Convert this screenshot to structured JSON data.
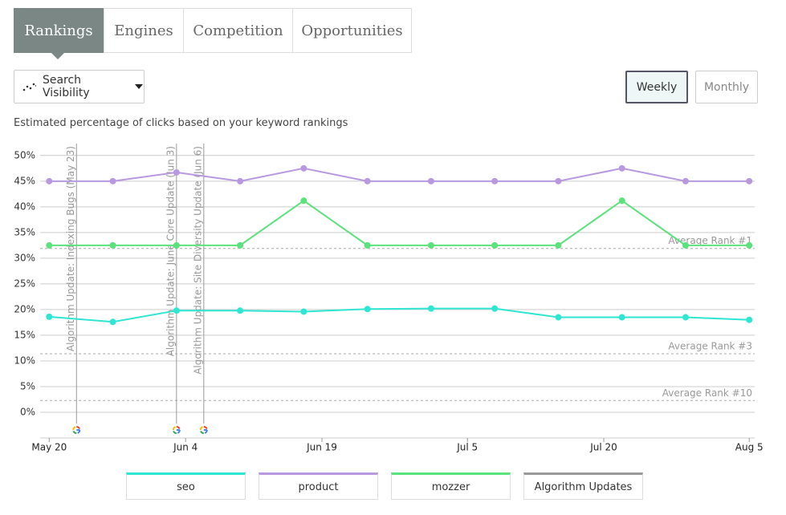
{
  "tabs": [
    "Rankings",
    "Engines",
    "Competition",
    "Opportunities"
  ],
  "dropdown": "Search Visibility",
  "period_buttons": [
    "Weekly",
    "Monthly"
  ],
  "subtitle": "Estimated percentage of clicks based on your keyword rankings",
  "chart_data": {
    "type": "line",
    "x": [
      0,
      7,
      14,
      21,
      28,
      35,
      42,
      49,
      56,
      63,
      70,
      77
    ],
    "xlim": [
      -1,
      77.6
    ],
    "xticks": [
      {
        "value": 0,
        "label": "May 20"
      },
      {
        "value": 15,
        "label": "Jun 4"
      },
      {
        "value": 30,
        "label": "Jun 19"
      },
      {
        "value": 46,
        "label": "Jul 5"
      },
      {
        "value": 61,
        "label": "Jul 20"
      },
      {
        "value": 77,
        "label": "Aug 5"
      }
    ],
    "ylim": [
      -5,
      52
    ],
    "yticks": [
      {
        "value": 0,
        "label": "0%"
      },
      {
        "value": 5,
        "label": "5%"
      },
      {
        "value": 10,
        "label": "10%"
      },
      {
        "value": 15,
        "label": "15%"
      },
      {
        "value": 20,
        "label": "20%"
      },
      {
        "value": 25,
        "label": "25%"
      },
      {
        "value": 30,
        "label": "30%"
      },
      {
        "value": 35,
        "label": "35%"
      },
      {
        "value": 40,
        "label": "40%"
      },
      {
        "value": 45,
        "label": "45%"
      },
      {
        "value": 50,
        "label": "50%"
      }
    ],
    "grid": true,
    "series": [
      {
        "name": "seo",
        "color": "#2ee6d2",
        "values": [
          18.6,
          17.6,
          19.8,
          19.8,
          19.6,
          20.1,
          20.2,
          20.2,
          18.5,
          18.5,
          18.5,
          18.0
        ]
      },
      {
        "name": "product",
        "color": "#b899e0",
        "values": [
          45,
          45,
          46.7,
          45,
          47.5,
          45,
          45,
          45,
          45,
          47.5,
          45,
          45
        ]
      },
      {
        "name": "mozzer",
        "color": "#5ce27c",
        "values": [
          32.5,
          32.5,
          32.5,
          32.5,
          41.2,
          32.5,
          32.5,
          32.5,
          32.5,
          41.2,
          32.5,
          32.5
        ]
      }
    ],
    "reference_lines": [
      {
        "value": 31.9,
        "label": "Average Rank #1"
      },
      {
        "value": 11.4,
        "label": "Average Rank #3"
      },
      {
        "value": 2.3,
        "label": "Average Rank #10"
      }
    ],
    "annotations": [
      {
        "x": 3,
        "label": "Algorithm Update: Indexing Bugs (May 23)"
      },
      {
        "x": 14,
        "label": "Algorithm Update: June Core Update (Jun 3)"
      },
      {
        "x": 17,
        "label": "Algorithm Update: Site Diversity Update (Jun 6)"
      }
    ],
    "annotation_legend": "Algorithm Updates",
    "annotation_color": "#999999"
  }
}
